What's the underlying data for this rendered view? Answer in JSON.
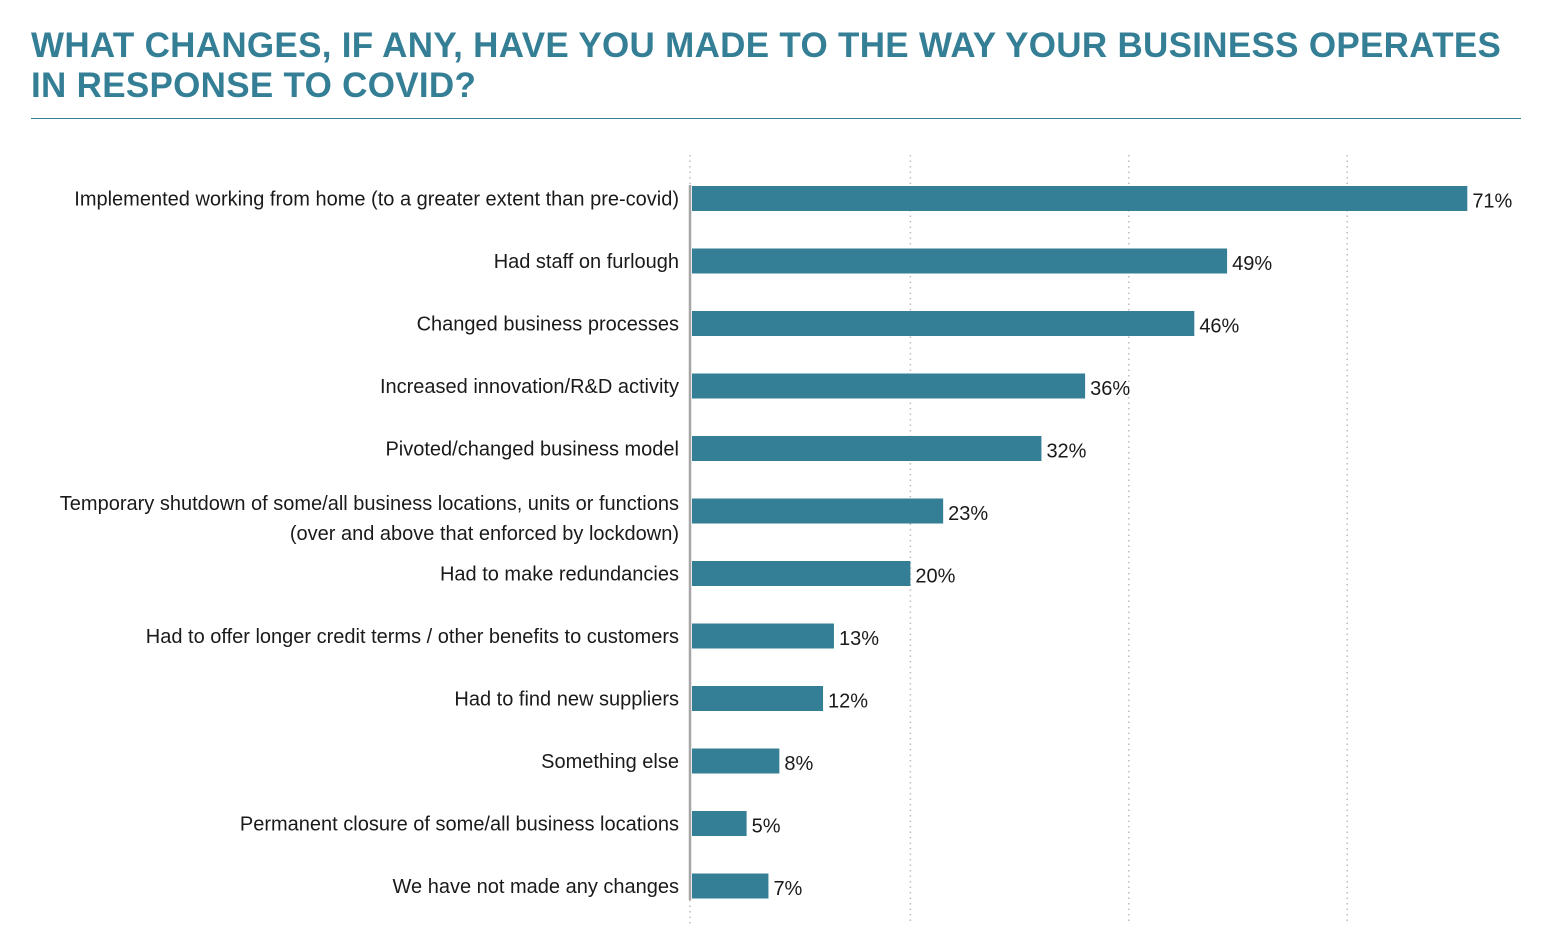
{
  "title": "WHAT CHANGES, IF ANY, HAVE YOU MADE TO THE WAY YOUR BUSINESS OPERATES IN RESPONSE TO COVID?",
  "colors": {
    "bar": "#347f95",
    "title": "#347f95",
    "axis": "#a6a6a6",
    "grid": "#bdbdbd"
  },
  "chart_data": {
    "type": "bar",
    "orientation": "horizontal",
    "categories": [
      [
        "Implemented working from home (to a greater extent than pre-covid)"
      ],
      [
        "Had staff on furlough"
      ],
      [
        "Changed business processes"
      ],
      [
        "Increased innovation/R&D activity"
      ],
      [
        "Pivoted/changed business model"
      ],
      [
        "Temporary shutdown of some/all business locations, units or functions",
        "(over and above that enforced by lockdown)"
      ],
      [
        "Had to make redundancies"
      ],
      [
        "Had to offer longer credit terms / other benefits to customers"
      ],
      [
        "Had to find new suppliers"
      ],
      [
        "Something else"
      ],
      [
        "Permanent closure of some/all business locations"
      ],
      [
        "We have not made any changes"
      ]
    ],
    "values": [
      71,
      49,
      46,
      36,
      32,
      23,
      20,
      13,
      12,
      8,
      5,
      7
    ],
    "value_labels": [
      "71%",
      "49%",
      "46%",
      "36%",
      "32%",
      "23%",
      "20%",
      "13%",
      "12%",
      "8%",
      "5%",
      "7%"
    ],
    "xlim": [
      0,
      80
    ],
    "gridlines_at": [
      20,
      40,
      60
    ],
    "grid": "dotted vertical",
    "legend": "none"
  }
}
